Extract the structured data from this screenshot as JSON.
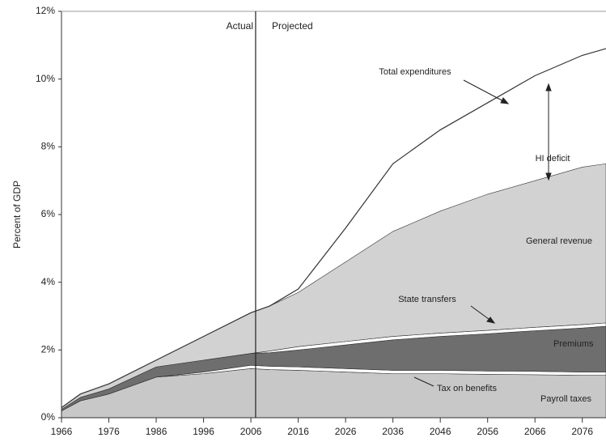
{
  "chart_data": {
    "type": "stacked_area",
    "y_label": "Percent of GDP",
    "x": [
      1966,
      1970,
      1976,
      1986,
      1996,
      2006,
      2010,
      2016,
      2026,
      2036,
      2046,
      2056,
      2066,
      2076,
      2081
    ],
    "series": [
      {
        "name": "Payroll taxes",
        "color": "#c8c8c8",
        "values": [
          0.2,
          0.5,
          0.7,
          1.2,
          1.3,
          1.45,
          1.42,
          1.4,
          1.35,
          1.3,
          1.3,
          1.28,
          1.27,
          1.25,
          1.25
        ]
      },
      {
        "name": "Tax on benefits",
        "color": "#ffffff",
        "values": [
          0,
          0,
          0,
          0,
          0.05,
          0.1,
          0.1,
          0.1,
          0.1,
          0.1,
          0.1,
          0.1,
          0.1,
          0.1,
          0.1
        ]
      },
      {
        "name": "Premiums",
        "color": "#6e6e6e",
        "values": [
          0.05,
          0.1,
          0.15,
          0.3,
          0.35,
          0.35,
          0.4,
          0.5,
          0.7,
          0.9,
          1.0,
          1.1,
          1.2,
          1.3,
          1.35
        ]
      },
      {
        "name": "State transfers",
        "color": "#ffffff",
        "values": [
          0,
          0,
          0,
          0,
          0,
          0,
          0.05,
          0.1,
          0.1,
          0.1,
          0.1,
          0.1,
          0.1,
          0.1,
          0.1
        ]
      },
      {
        "name": "General revenue",
        "color": "#d2d2d2",
        "values": [
          0.05,
          0.1,
          0.15,
          0.2,
          0.7,
          1.2,
          1.33,
          1.6,
          2.35,
          3.1,
          3.6,
          4.02,
          4.33,
          4.65,
          4.7
        ]
      }
    ],
    "total": {
      "name": "Total expenditures",
      "color": "#333333",
      "values": [
        0.3,
        0.7,
        1.0,
        1.7,
        2.4,
        3.1,
        3.3,
        3.8,
        5.6,
        7.5,
        8.5,
        9.3,
        10.1,
        10.7,
        10.9
      ]
    },
    "deficit_label": "HI deficit",
    "divider": {
      "x": 2007,
      "left": "Actual",
      "right": "Projected"
    },
    "xlim": [
      1966,
      2081
    ],
    "xticks": [
      1966,
      1976,
      1986,
      1996,
      2006,
      2016,
      2026,
      2036,
      2046,
      2056,
      2066,
      2076
    ],
    "ylim": [
      0,
      12
    ],
    "yticks": [
      {
        "value": 0,
        "label": "0%"
      },
      {
        "value": 2,
        "label": "2%"
      },
      {
        "value": 4,
        "label": "4%"
      },
      {
        "value": 6,
        "label": "6%"
      },
      {
        "value": 8,
        "label": "8%"
      },
      {
        "value": 10,
        "label": "10%"
      },
      {
        "value": 12,
        "label": "12%"
      }
    ]
  }
}
